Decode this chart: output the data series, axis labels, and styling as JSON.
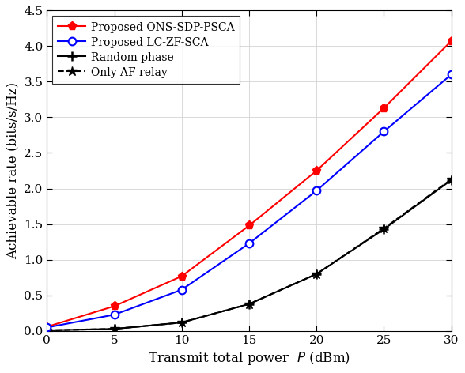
{
  "x": [
    0,
    5,
    10,
    15,
    20,
    25,
    30
  ],
  "ons_sdp_psca": [
    0.06,
    0.35,
    0.77,
    1.48,
    2.25,
    3.13,
    4.07
  ],
  "lc_zf_sca": [
    0.05,
    0.23,
    0.58,
    1.23,
    1.97,
    2.8,
    3.6
  ],
  "random_phase": [
    0.01,
    0.03,
    0.12,
    0.38,
    0.8,
    1.43,
    2.12
  ],
  "only_af_relay": [
    0.01,
    0.03,
    0.12,
    0.38,
    0.8,
    1.44,
    2.13
  ],
  "ons_color": "#ff0000",
  "lc_color": "#0000ff",
  "blk_color": "#000000",
  "xlabel": "Transmit total power  $P$ (dBm)",
  "ylabel": "Achievable rate (bits/s/Hz)",
  "xlim": [
    0,
    30
  ],
  "ylim": [
    0,
    4.5
  ],
  "xticks": [
    0,
    5,
    10,
    15,
    20,
    25,
    30
  ],
  "yticks": [
    0,
    0.5,
    1.0,
    1.5,
    2.0,
    2.5,
    3.0,
    3.5,
    4.0,
    4.5
  ],
  "legend_ons": "Proposed ONS-SDP-PSCA",
  "legend_lc": "Proposed LC-ZF-SCA",
  "legend_rand": "Random phase",
  "legend_af": "Only AF relay",
  "fig_width": 5.88,
  "fig_height": 4.72,
  "dpi": 100
}
